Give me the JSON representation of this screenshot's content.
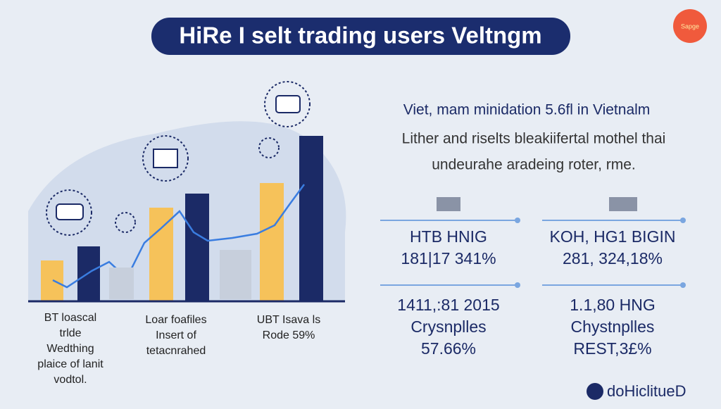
{
  "header": {
    "title": "HiRe I selt trading users Veltngm",
    "badge": "Sapge"
  },
  "intro": {
    "heading": "Viet, mam minidation 5.6fl in Vietnalm",
    "lines": [
      "Lither and riselts bleakiifertal mothel thai",
      "undeurahe aradeing roter, rme."
    ]
  },
  "captions": [
    [
      "BT loascal",
      "trlde",
      "Wedthing",
      "plaice of lanit",
      "vodtol."
    ],
    [
      "Loar foafiles",
      "Insert of",
      "tetacnrahed"
    ],
    [
      "UBT Isava ls",
      "Rode 59%"
    ]
  ],
  "stats": [
    [
      "HTB HNIG",
      "181|17 341%"
    ],
    [
      "KOH, HG1 BIGIN",
      "281, 324,18%"
    ],
    [
      "1411,:81 2015",
      "Crysnplles",
      "57.66%"
    ],
    [
      "1.1,80 HNG",
      "Chystnplles",
      "REST,3£%"
    ]
  ],
  "logo": "doHiclitueD"
}
